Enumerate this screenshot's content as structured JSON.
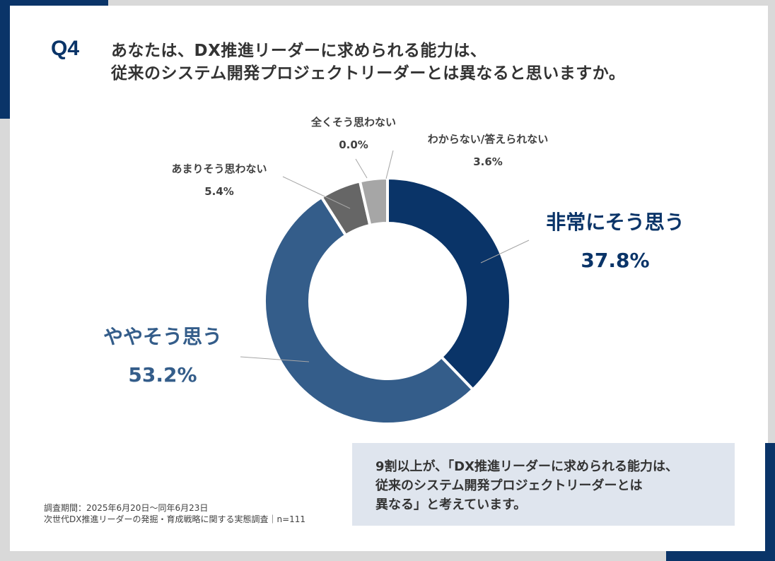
{
  "header": {
    "question_no": "Q4",
    "title_line1": "あなたは、DX推進リーダーに求められる能力は、",
    "title_line2": "従来のシステム開発プロジェクトリーダーとは異なると思いますか。"
  },
  "colors": {
    "brand": "#0a3468",
    "background": "#d9d9d9"
  },
  "chart_data": {
    "type": "pie",
    "donut": true,
    "start": "top",
    "direction": "clockwise",
    "slices": [
      {
        "label": "非常にそう思う",
        "value": 37.8,
        "value_label": "37.8%",
        "color": "#0a3468"
      },
      {
        "label": "ややそう思う",
        "value": 53.2,
        "value_label": "53.2%",
        "color": "#345d8a"
      },
      {
        "label": "あまりそう思わない",
        "value": 5.4,
        "value_label": "5.4%",
        "color": "#666666"
      },
      {
        "label": "全くそう思わない",
        "value": 0.0,
        "value_label": "0.0%",
        "color": "#404040"
      },
      {
        "label": "わからない/答えられない",
        "value": 3.6,
        "value_label": "3.6%",
        "color": "#a6a6a6"
      }
    ]
  },
  "summary": {
    "line1": "9割以上が、「DX推進リーダーに求められる能力は、",
    "line2": "従来のシステム開発プロジェクトリーダーとは",
    "line3": "異なる」と考えています。"
  },
  "footnote": {
    "period": "調査期間：2025年6月20日～同年6月23日",
    "survey": "次世代DX推進リーダーの発掘・育成戦略に関する実態調査｜n=111"
  }
}
